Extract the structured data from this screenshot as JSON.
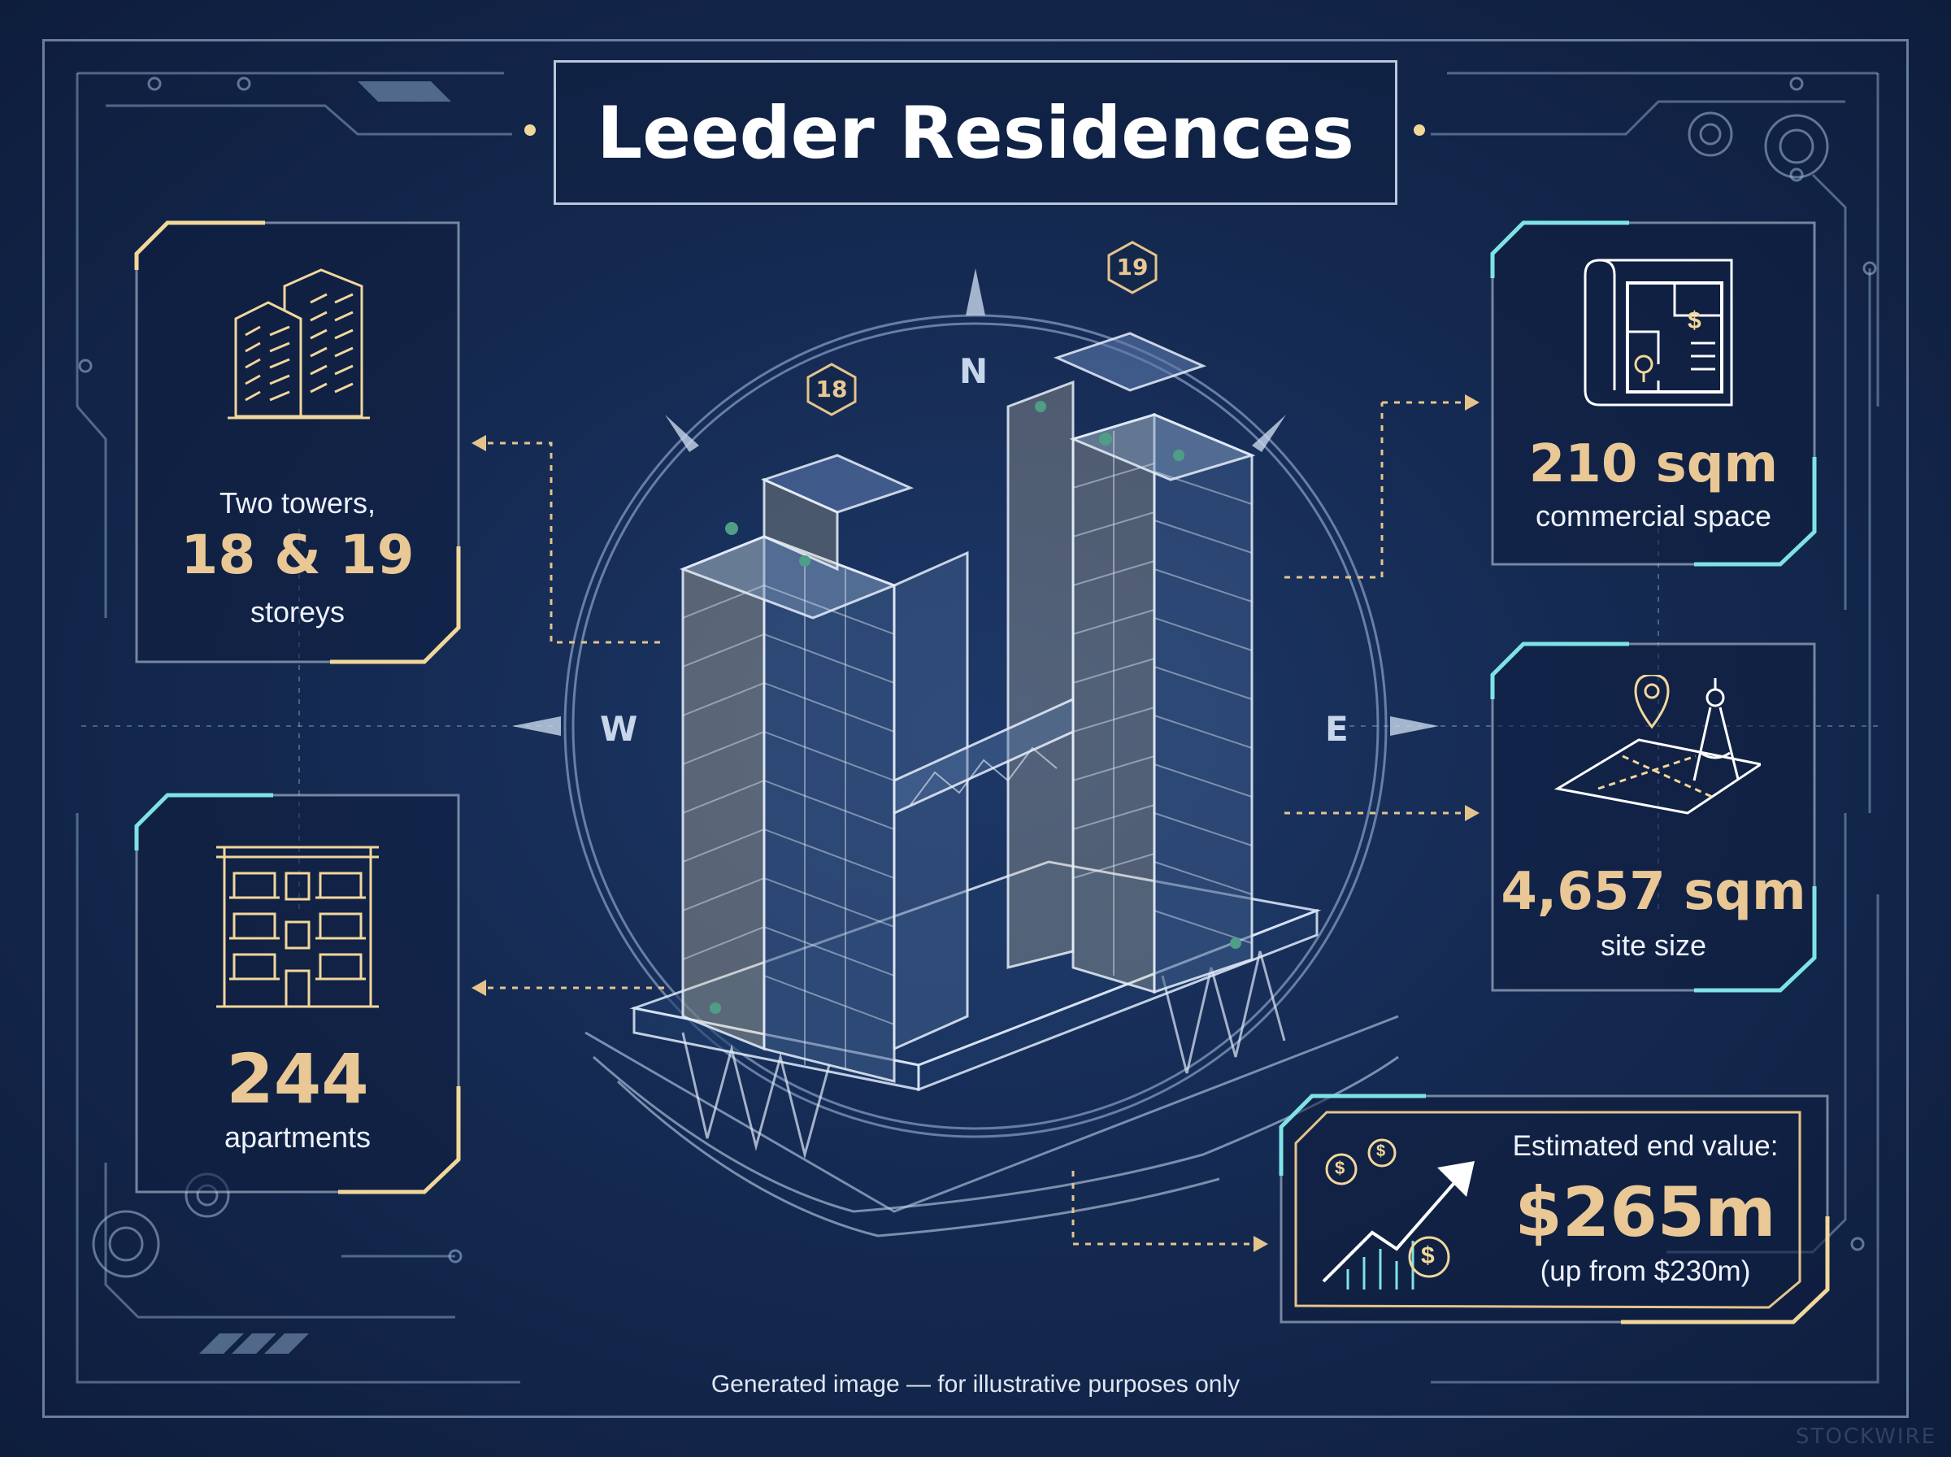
{
  "title": "Leeder Residences",
  "compass": {
    "north": "N",
    "west": "W",
    "east": "E"
  },
  "tower_badges": [
    "18",
    "19"
  ],
  "stats": {
    "towers": {
      "line1": "Two towers,",
      "value": "18 & 19",
      "line2": "storeys",
      "icon": "twin-towers-icon"
    },
    "apartments": {
      "value": "244",
      "label": "apartments",
      "icon": "apartment-building-icon"
    },
    "commercial": {
      "value": "210 sqm",
      "label": "commercial space",
      "icon": "floor-plan-icon"
    },
    "site": {
      "value": "4,657 sqm",
      "label": "site size",
      "icon": "site-map-compass-icon"
    },
    "value": {
      "label": "Estimated end value:",
      "value": "$265m",
      "note": "(up from $230m)",
      "icon": "rising-value-chart-icon"
    }
  },
  "footer": "Generated image — for illustrative purposes only",
  "watermark": "STOCKWIRE",
  "colors": {
    "background": "#152a52",
    "gold": "#e9c896",
    "cyan": "#7fe3e6",
    "line": "#b4cdeb"
  }
}
